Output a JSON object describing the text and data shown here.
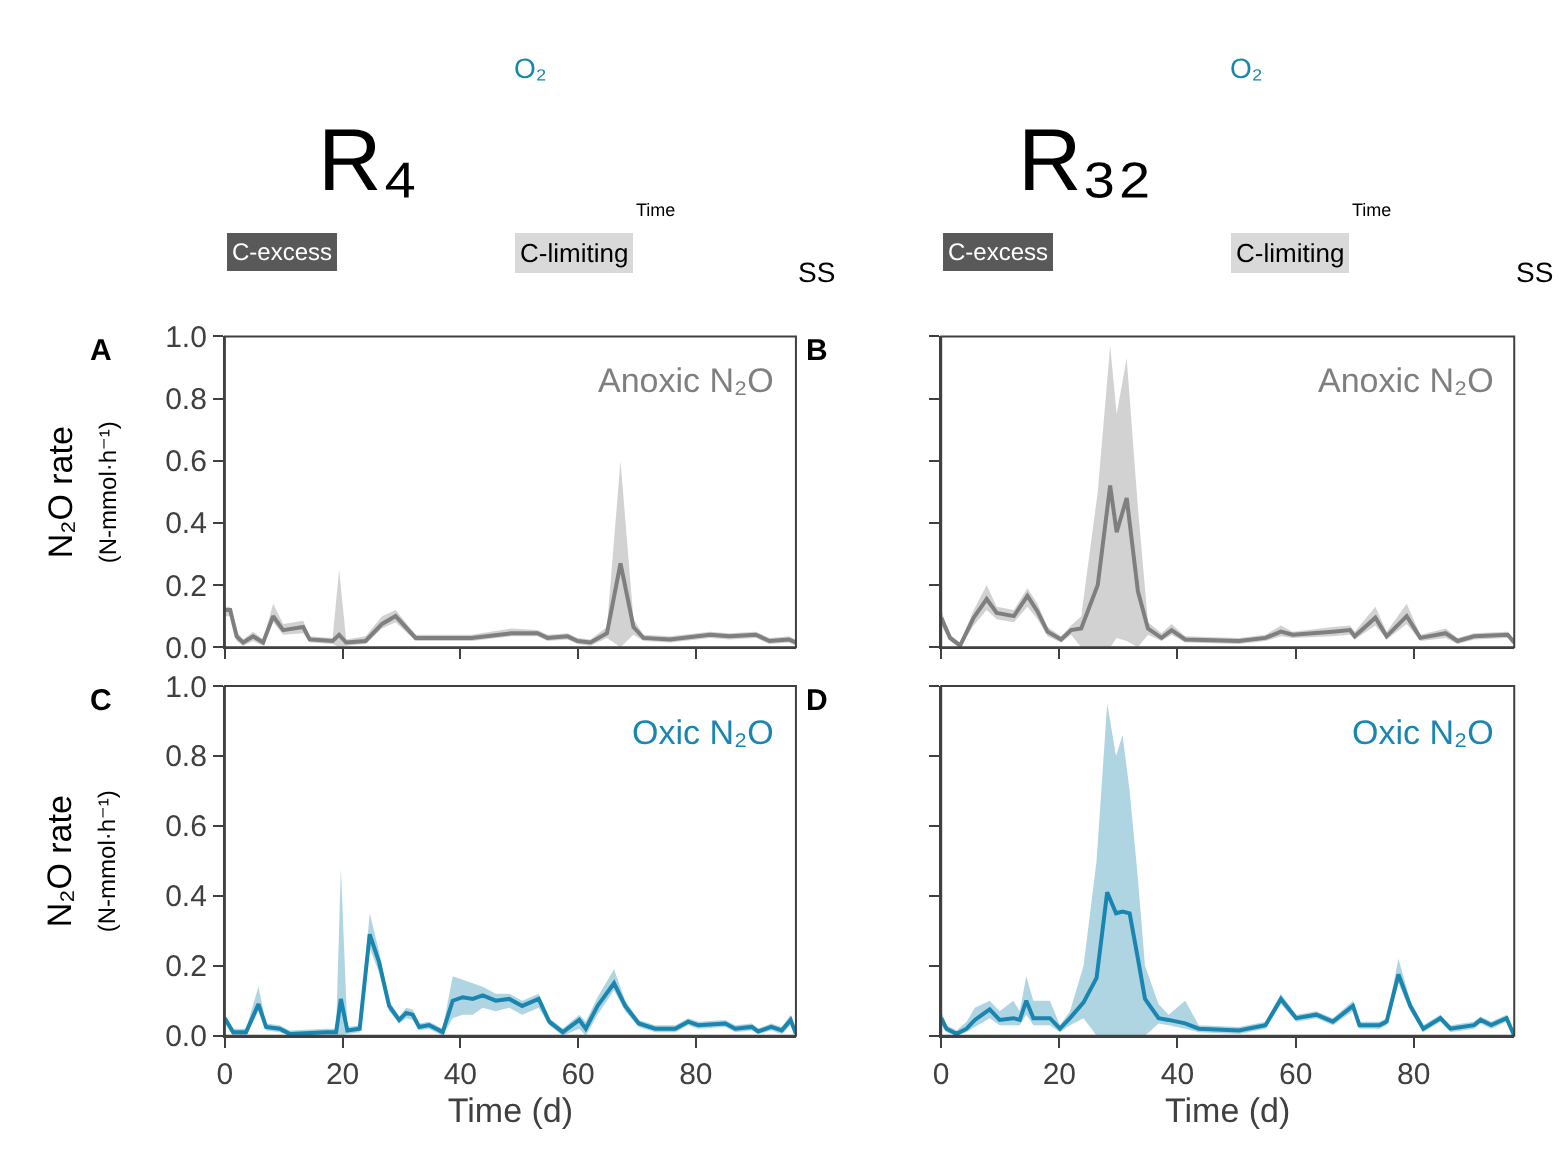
{
  "chart_data": [
    {
      "type": "other",
      "annotations": [
        "R₄",
        "O₂",
        "Time",
        "C-excess",
        "C-limiting",
        "SS"
      ]
    },
    {
      "type": "other",
      "annotations": [
        "R₃₂",
        "O₂",
        "Time",
        "C-excess",
        "C-limiting",
        "SS"
      ]
    },
    {
      "type": "line",
      "title": "A",
      "ylabel": "N₂O rate\n(N-mmol·h⁻¹)",
      "tick_labels": "y",
      "xlim": [
        0,
        97
      ],
      "xticks": [
        0,
        20,
        40,
        60,
        80
      ],
      "ylim": [
        0,
        1
      ],
      "yticks": [
        {
          "value": 0,
          "label": "0.0"
        },
        {
          "value": 0.2,
          "label": "0.2"
        },
        {
          "value": 0.4,
          "label": "0.4"
        },
        {
          "value": 0.6,
          "label": "0.6"
        },
        {
          "value": 0.8,
          "label": "0.8"
        },
        {
          "value": 1,
          "label": "1.0"
        }
      ],
      "x": [
        0,
        0.9,
        2,
        3.1,
        4.8,
        6.5,
        8.2,
        9.9,
        13.3,
        14.4,
        18.3,
        19.4,
        20.6,
        23.9,
        26.7,
        29,
        32.4,
        41.9,
        48.7,
        53.1,
        54.8,
        58.2,
        59.9,
        62.1,
        64.9,
        67.2,
        69.4,
        71.1,
        75.6,
        82.4,
        85.7,
        90.2,
        92.5,
        95.8,
        97
      ],
      "series": [
        {
          "name": "Anoxic N₂O",
          "color": "#7f7f7f",
          "values": [
            0.12,
            0.12,
            0.035,
            0.015,
            0.035,
            0.015,
            0.1,
            0.055,
            0.065,
            0.025,
            0.02,
            0.04,
            0.015,
            0.02,
            0.075,
            0.1,
            0.03,
            0.03,
            0.045,
            0.045,
            0.03,
            0.035,
            0.02,
            0.015,
            0.045,
            0.27,
            0.065,
            0.03,
            0.025,
            0.04,
            0.035,
            0.04,
            0.02,
            0.025,
            0.015
          ],
          "lower": [
            0.1,
            0.1,
            0.02,
            0.005,
            0.02,
            0.005,
            0.08,
            0.04,
            0.045,
            0.015,
            0.01,
            0,
            0.005,
            0.01,
            0.06,
            0.08,
            0.02,
            0.02,
            0.035,
            0.035,
            0.02,
            0.025,
            0.01,
            0.005,
            0.03,
            0,
            0.04,
            0.02,
            0.015,
            0.03,
            0.025,
            0.03,
            0.01,
            0.015,
            0.005
          ],
          "upper": [
            0.13,
            0.13,
            0.05,
            0.025,
            0.05,
            0.025,
            0.14,
            0.075,
            0.085,
            0.035,
            0.03,
            0.25,
            0.025,
            0.035,
            0.1,
            0.12,
            0.04,
            0.04,
            0.06,
            0.055,
            0.04,
            0.045,
            0.03,
            0.025,
            0.065,
            0.6,
            0.09,
            0.04,
            0.035,
            0.05,
            0.045,
            0.05,
            0.03,
            0.035,
            0.025
          ]
        }
      ]
    },
    {
      "type": "line",
      "title": "B",
      "tick_labels": false,
      "xlim": [
        0,
        97
      ],
      "xticks": [
        0,
        20,
        40,
        60,
        80
      ],
      "ylim": [
        0,
        1
      ],
      "yticks": [
        0,
        0.2,
        0.4,
        0.6,
        0.8,
        1
      ],
      "x": [
        0,
        1.5,
        3.2,
        5.5,
        7.7,
        9.4,
        12.3,
        14.6,
        16.3,
        18,
        20.3,
        22,
        23.7,
        26.5,
        28.6,
        29.7,
        31.4,
        33.3,
        35,
        37.3,
        39,
        41.3,
        50.4,
        54.9,
        57.5,
        59.5,
        66.3,
        69.2,
        70,
        73.5,
        75.4,
        78.8,
        81.1,
        85.4,
        87.4,
        90.2,
        95.9,
        97
      ],
      "series": [
        {
          "name": "Anoxic N₂O",
          "color": "#7f7f7f",
          "values": [
            0.095,
            0.03,
            0.005,
            0.095,
            0.155,
            0.11,
            0.1,
            0.165,
            0.115,
            0.05,
            0.025,
            0.055,
            0.06,
            0.2,
            0.52,
            0.37,
            0.48,
            0.18,
            0.06,
            0.03,
            0.055,
            0.025,
            0.02,
            0.03,
            0.05,
            0.04,
            0.05,
            0.055,
            0.035,
            0.095,
            0.035,
            0.1,
            0.03,
            0.045,
            0.02,
            0.035,
            0.04,
            0.015
          ],
          "lower": [
            0.07,
            0.02,
            0,
            0.07,
            0.12,
            0.09,
            0.08,
            0.13,
            0.09,
            0.035,
            0.015,
            0.04,
            0,
            0,
            0,
            0.03,
            0.02,
            0,
            0.04,
            0.02,
            0.04,
            0.015,
            0.01,
            0.02,
            0.035,
            0.03,
            0.035,
            0.04,
            0.025,
            0.07,
            0.025,
            0.075,
            0.02,
            0.03,
            0.01,
            0.025,
            0.03,
            0.005
          ],
          "upper": [
            0.12,
            0.04,
            0.015,
            0.12,
            0.2,
            0.13,
            0.12,
            0.19,
            0.14,
            0.065,
            0.035,
            0.07,
            0.1,
            0.5,
            0.97,
            0.75,
            0.93,
            0.45,
            0.08,
            0.045,
            0.075,
            0.035,
            0.03,
            0.04,
            0.07,
            0.05,
            0.065,
            0.07,
            0.05,
            0.13,
            0.05,
            0.14,
            0.04,
            0.06,
            0.03,
            0.045,
            0.05,
            0.025
          ]
        }
      ]
    },
    {
      "type": "line",
      "title": "C",
      "ylabel": "N₂O rate\n(N-mmol·h⁻¹)",
      "xlabel": "Time (d)",
      "xlim": [
        0,
        97
      ],
      "xticks": [
        0,
        20,
        40,
        60,
        80
      ],
      "ylim": [
        0,
        1
      ],
      "yticks": [
        {
          "value": 0,
          "label": "0.0"
        },
        {
          "value": 0.2,
          "label": "0.2"
        },
        {
          "value": 0.4,
          "label": "0.4"
        },
        {
          "value": 0.6,
          "label": "0.6"
        },
        {
          "value": 0.8,
          "label": "0.8"
        },
        {
          "value": 1,
          "label": "1.0"
        }
      ],
      "x": [
        0,
        1.4,
        3.6,
        5.7,
        7,
        9.3,
        11,
        17.2,
        18.9,
        19.7,
        20.8,
        22.9,
        24.6,
        26.2,
        27.9,
        29.6,
        30.8,
        31.9,
        33,
        34.7,
        37,
        38.7,
        40.4,
        42.1,
        43.8,
        46,
        48.3,
        50.5,
        53.3,
        55.1,
        57.4,
        60.2,
        61.3,
        63.3,
        66.1,
        68,
        70.3,
        73.1,
        76.5,
        78.7,
        80.4,
        85,
        86.7,
        89.5,
        90.6,
        92.8,
        94.6,
        96.1,
        97
      ],
      "series": [
        {
          "name": "Oxic N₂O",
          "color": "#1a86b0",
          "values": [
            0.05,
            0.01,
            0.01,
            0.09,
            0.025,
            0.02,
            0.005,
            0.01,
            0.01,
            0.105,
            0.015,
            0.02,
            0.29,
            0.21,
            0.085,
            0.045,
            0.065,
            0.06,
            0.025,
            0.03,
            0.01,
            0.1,
            0.11,
            0.105,
            0.115,
            0.1,
            0.105,
            0.085,
            0.105,
            0.04,
            0.01,
            0.045,
            0.02,
            0.085,
            0.15,
            0.085,
            0.035,
            0.02,
            0.02,
            0.04,
            0.03,
            0.035,
            0.02,
            0.025,
            0.012,
            0.025,
            0.015,
            0.045,
            0.005
          ],
          "lower": [
            0.035,
            0,
            0,
            0.07,
            0.015,
            0.01,
            0,
            0,
            0,
            0,
            0.005,
            0.01,
            0.25,
            0.18,
            0.07,
            0.035,
            0.05,
            0.045,
            0.015,
            0.02,
            0,
            0.05,
            0.06,
            0.06,
            0.08,
            0.07,
            0.08,
            0.06,
            0.08,
            0.03,
            0,
            0.02,
            0,
            0.06,
            0.13,
            0.07,
            0.025,
            0.01,
            0.01,
            0.03,
            0.02,
            0.025,
            0.01,
            0.015,
            0.005,
            0.015,
            0.005,
            0.03,
            0
          ],
          "upper": [
            0.06,
            0.02,
            0.02,
            0.14,
            0.035,
            0.03,
            0.015,
            0.02,
            0.02,
            0.48,
            0.025,
            0.03,
            0.35,
            0.24,
            0.1,
            0.055,
            0.08,
            0.075,
            0.035,
            0.04,
            0.02,
            0.17,
            0.16,
            0.15,
            0.14,
            0.12,
            0.12,
            0.1,
            0.12,
            0.05,
            0.02,
            0.06,
            0.04,
            0.11,
            0.19,
            0.1,
            0.045,
            0.03,
            0.03,
            0.05,
            0.04,
            0.045,
            0.03,
            0.035,
            0.02,
            0.035,
            0.025,
            0.06,
            0.015
          ]
        }
      ]
    },
    {
      "type": "line",
      "title": "D",
      "xlabel": "Time (d)",
      "tick_labels": "x",
      "xlim": [
        0,
        97
      ],
      "xticks": [
        0,
        20,
        40,
        60,
        80
      ],
      "ylim": [
        0,
        1
      ],
      "yticks": [
        0,
        0.2,
        0.4,
        0.6,
        0.8,
        1
      ],
      "x": [
        0,
        0.9,
        2.6,
        4.3,
        5.7,
        8.2,
        9.9,
        12.2,
        13.3,
        14.4,
        15.6,
        18.4,
        20.1,
        21.8,
        24.1,
        26.3,
        28.1,
        29.6,
        30.7,
        31.9,
        33.3,
        34.5,
        36.8,
        38.5,
        41.3,
        43.6,
        50.4,
        54.9,
        57.5,
        60.1,
        63.5,
        66.3,
        69.7,
        70.8,
        74.2,
        75.4,
        77.4,
        79.4,
        81.6,
        84.5,
        86.2,
        90.2,
        91.3,
        93.1,
        95.7,
        97
      ],
      "series": [
        {
          "name": "Oxic N₂O",
          "color": "#1a86b0",
          "values": [
            0.05,
            0.02,
            0.005,
            0.02,
            0.045,
            0.075,
            0.045,
            0.05,
            0.045,
            0.1,
            0.05,
            0.05,
            0.02,
            0.05,
            0.095,
            0.165,
            0.41,
            0.35,
            0.355,
            0.35,
            0.22,
            0.105,
            0.05,
            0.045,
            0.035,
            0.02,
            0.015,
            0.03,
            0.105,
            0.05,
            0.06,
            0.04,
            0.085,
            0.03,
            0.03,
            0.04,
            0.175,
            0.085,
            0.02,
            0.05,
            0.02,
            0.03,
            0.045,
            0.03,
            0.05,
            0
          ],
          "lower": [
            0.03,
            0.01,
            0,
            0.01,
            0.025,
            0.05,
            0.03,
            0.03,
            0.03,
            0.06,
            0.03,
            0.03,
            0.01,
            0.03,
            0.05,
            0,
            0,
            0,
            0,
            0,
            0,
            0,
            0.035,
            0.03,
            0.02,
            0.01,
            0.005,
            0.02,
            0.09,
            0.04,
            0.05,
            0.03,
            0.07,
            0.02,
            0.02,
            0.03,
            0.15,
            0.07,
            0.01,
            0.04,
            0.01,
            0.02,
            0.035,
            0.02,
            0.04,
            0
          ],
          "upper": [
            0.07,
            0.03,
            0.015,
            0.04,
            0.08,
            0.1,
            0.07,
            0.1,
            0.07,
            0.17,
            0.1,
            0.1,
            0.03,
            0.07,
            0.2,
            0.5,
            0.95,
            0.8,
            0.86,
            0.7,
            0.45,
            0.2,
            0.09,
            0.06,
            0.1,
            0.03,
            0.025,
            0.04,
            0.12,
            0.06,
            0.07,
            0.05,
            0.1,
            0.04,
            0.04,
            0.05,
            0.22,
            0.1,
            0.03,
            0.06,
            0.03,
            0.04,
            0.055,
            0.04,
            0.06,
            0.01
          ]
        }
      ]
    }
  ]
}
